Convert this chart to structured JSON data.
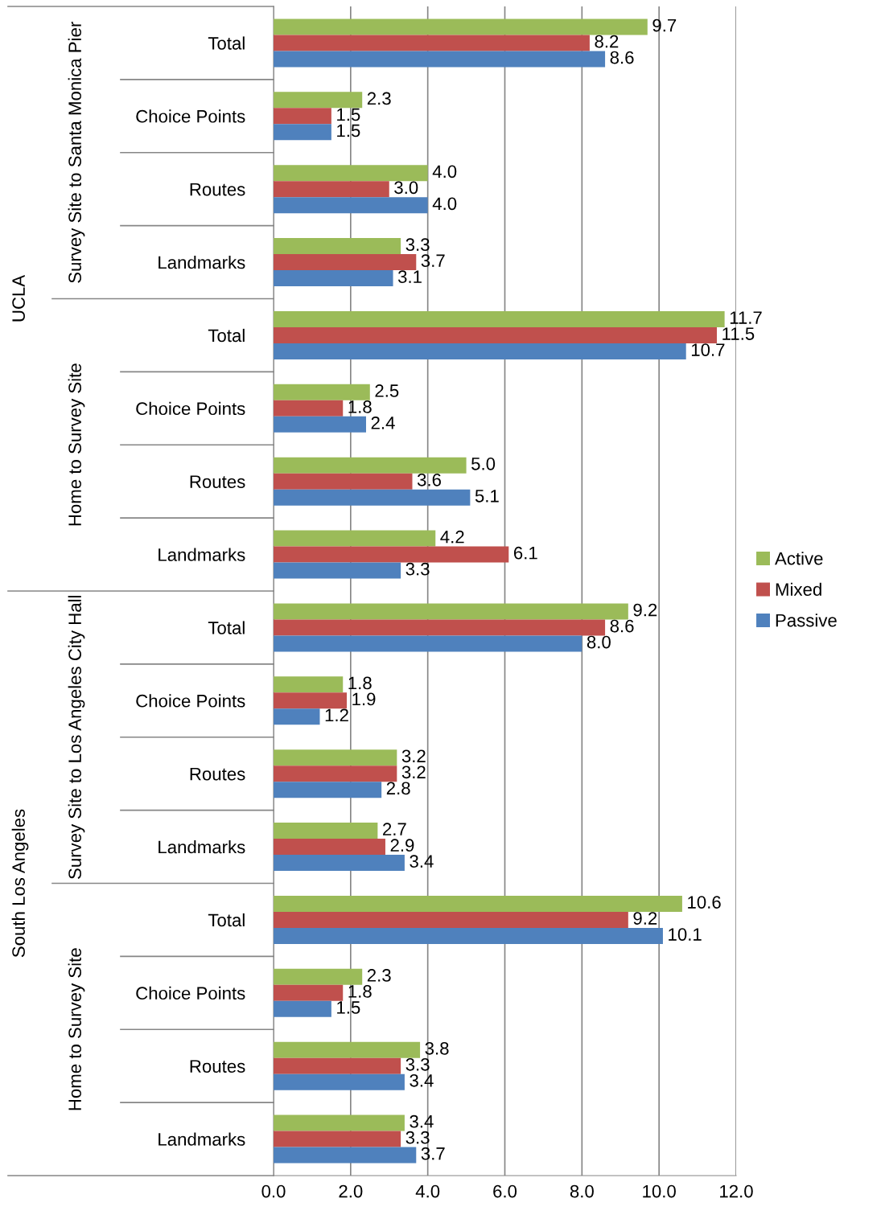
{
  "chart_data": {
    "type": "bar",
    "orientation": "horizontal",
    "categories": [
      "Total",
      "Choice Points",
      "Routes",
      "Landmarks",
      "Total",
      "Choice Points",
      "Routes",
      "Landmarks",
      "Total",
      "Choice Points",
      "Routes",
      "Landmarks",
      "Total",
      "Choice Points",
      "Routes",
      "Landmarks"
    ],
    "series": [
      {
        "name": "Active",
        "color": "#9bbb59",
        "values": [
          9.7,
          2.3,
          4.0,
          3.3,
          11.7,
          2.5,
          5.0,
          4.2,
          9.2,
          1.8,
          3.2,
          2.7,
          10.6,
          2.3,
          3.8,
          3.4
        ],
        "value_labels": [
          "9.7",
          "2.3",
          "4.0",
          "3.3",
          "11.7",
          "2.5",
          "5.0",
          "4.2",
          "9.2",
          "1.8",
          "3.2",
          "2.7",
          "10.6",
          "2.3",
          "3.8",
          "3.4"
        ]
      },
      {
        "name": "Mixed",
        "color": "#c0504d",
        "values": [
          8.2,
          1.5,
          3.0,
          3.7,
          11.5,
          1.8,
          3.6,
          6.1,
          8.6,
          1.9,
          3.2,
          2.9,
          9.2,
          1.8,
          3.3,
          3.3
        ],
        "value_labels": [
          "8.2",
          "1.5",
          "3.0",
          "3.7",
          "11.5",
          "1.8",
          "3.6",
          "6.1",
          "8.6",
          "1.9",
          "3.2",
          "2.9",
          "9.2",
          "1.8",
          "3.3",
          "3.3"
        ]
      },
      {
        "name": "Passive",
        "color": "#4f81bd",
        "values": [
          8.6,
          1.5,
          4.0,
          3.1,
          10.7,
          2.4,
          5.1,
          3.3,
          8.0,
          1.2,
          2.8,
          3.4,
          10.1,
          1.5,
          3.4,
          3.7
        ],
        "value_labels": [
          "8.6",
          "1.5",
          "4.0",
          "3.1",
          "10.7",
          "2.4",
          "5.1",
          "3.3",
          "8.0",
          "1.2",
          "2.8",
          "3.4",
          "10.1",
          "1.5",
          "3.4",
          "3.7"
        ]
      }
    ],
    "annotations": [
      "UCLA",
      "South Los Angeles",
      "Survey Site to Santa Monica Pier",
      "Home to Survey Site",
      "Survey Site to Los Angeles City Hall",
      "Home to Survey Site"
    ],
    "xlim": [
      0,
      12
    ],
    "xticks": [
      {
        "value": 0,
        "label": "0.0"
      },
      {
        "value": 2,
        "label": "2.0"
      },
      {
        "value": 4,
        "label": "4.0"
      },
      {
        "value": 6,
        "label": "6.0"
      },
      {
        "value": 8,
        "label": "8.0"
      },
      {
        "value": 10,
        "label": "10.0"
      },
      {
        "value": 12,
        "label": "12.0"
      }
    ],
    "grid": "x",
    "legend": "right"
  }
}
